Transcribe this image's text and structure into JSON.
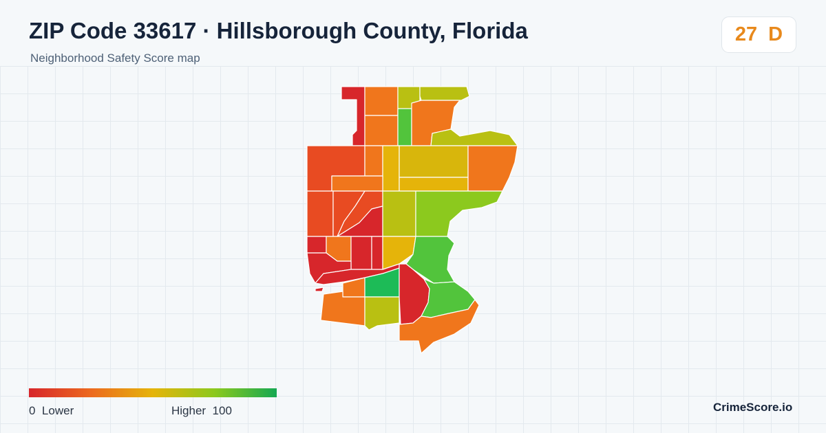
{
  "header": {
    "title": "ZIP Code 33617 · Hillsborough County, Florida",
    "subtitle": "Neighborhood Safety Score map"
  },
  "score": {
    "value": "27",
    "grade": "D",
    "color": "#e8891c"
  },
  "legend": {
    "low_min": "0",
    "low_label": "Lower",
    "high_label": "Higher",
    "high_max": "100",
    "colors": [
      "#d7262b",
      "#ec6a1f",
      "#e5b40a",
      "#8cc91e",
      "#16a852"
    ]
  },
  "brand": "CrimeScore.io",
  "map": {
    "region_colors": [
      "#d7262b",
      "#e84b22",
      "#f0761c",
      "#d8b60c",
      "#b9c012",
      "#8cc91e",
      "#52c43c",
      "#1dbb57"
    ]
  }
}
